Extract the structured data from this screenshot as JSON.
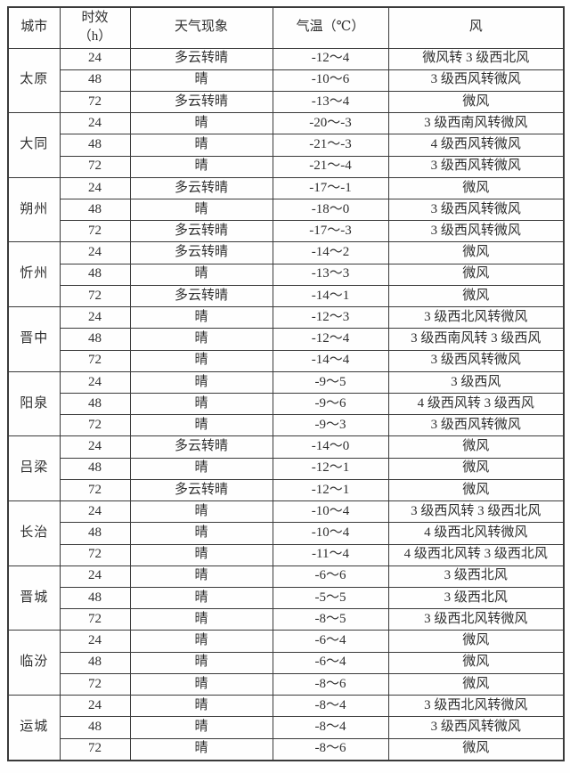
{
  "table": {
    "headers": [
      "城市",
      "时效\n（h）",
      "天气现象",
      "气温（℃）",
      "风"
    ],
    "groups": [
      {
        "city": "太原",
        "rows": [
          {
            "hours": "24",
            "weather": "多云转晴",
            "temp": "-12～4",
            "wind": "微风转 3 级西北风"
          },
          {
            "hours": "48",
            "weather": "晴",
            "temp": "-10～6",
            "wind": "3 级西风转微风"
          },
          {
            "hours": "72",
            "weather": "多云转晴",
            "temp": "-13～4",
            "wind": "微风"
          }
        ]
      },
      {
        "city": "大同",
        "rows": [
          {
            "hours": "24",
            "weather": "晴",
            "temp": "-20～-3",
            "wind": "3 级西南风转微风"
          },
          {
            "hours": "48",
            "weather": "晴",
            "temp": "-21～-3",
            "wind": "4 级西风转微风"
          },
          {
            "hours": "72",
            "weather": "晴",
            "temp": "-21～-4",
            "wind": "3 级西风转微风"
          }
        ]
      },
      {
        "city": "朔州",
        "rows": [
          {
            "hours": "24",
            "weather": "多云转晴",
            "temp": "-17～-1",
            "wind": "微风"
          },
          {
            "hours": "48",
            "weather": "晴",
            "temp": "-18～0",
            "wind": "3 级西风转微风"
          },
          {
            "hours": "72",
            "weather": "多云转晴",
            "temp": "-17～-3",
            "wind": "3 级西风转微风"
          }
        ]
      },
      {
        "city": "忻州",
        "rows": [
          {
            "hours": "24",
            "weather": "多云转晴",
            "temp": "-14～2",
            "wind": "微风"
          },
          {
            "hours": "48",
            "weather": "晴",
            "temp": "-13～3",
            "wind": "微风"
          },
          {
            "hours": "72",
            "weather": "多云转晴",
            "temp": "-14～1",
            "wind": "微风"
          }
        ]
      },
      {
        "city": "晋中",
        "rows": [
          {
            "hours": "24",
            "weather": "晴",
            "temp": "-12～3",
            "wind": "3 级西北风转微风"
          },
          {
            "hours": "48",
            "weather": "晴",
            "temp": "-12～4",
            "wind": "3 级西南风转 3 级西风"
          },
          {
            "hours": "72",
            "weather": "晴",
            "temp": "-14～4",
            "wind": "3 级西风转微风"
          }
        ]
      },
      {
        "city": "阳泉",
        "rows": [
          {
            "hours": "24",
            "weather": "晴",
            "temp": "-9～5",
            "wind": "3 级西风"
          },
          {
            "hours": "48",
            "weather": "晴",
            "temp": "-9～6",
            "wind": "4 级西风转 3 级西风"
          },
          {
            "hours": "72",
            "weather": "晴",
            "temp": "-9～3",
            "wind": "3 级西风转微风"
          }
        ]
      },
      {
        "city": "吕梁",
        "rows": [
          {
            "hours": "24",
            "weather": "多云转晴",
            "temp": "-14～0",
            "wind": "微风"
          },
          {
            "hours": "48",
            "weather": "晴",
            "temp": "-12～1",
            "wind": "微风"
          },
          {
            "hours": "72",
            "weather": "多云转晴",
            "temp": "-12～1",
            "wind": "微风"
          }
        ]
      },
      {
        "city": "长治",
        "rows": [
          {
            "hours": "24",
            "weather": "晴",
            "temp": "-10～4",
            "wind": "3 级西风转 3 级西北风"
          },
          {
            "hours": "48",
            "weather": "晴",
            "temp": "-10～4",
            "wind": "4 级西北风转微风"
          },
          {
            "hours": "72",
            "weather": "晴",
            "temp": "-11～4",
            "wind": "4 级西北风转 3 级西北风"
          }
        ]
      },
      {
        "city": "晋城",
        "rows": [
          {
            "hours": "24",
            "weather": "晴",
            "temp": "-6～6",
            "wind": "3 级西北风"
          },
          {
            "hours": "48",
            "weather": "晴",
            "temp": "-5～5",
            "wind": "3 级西北风"
          },
          {
            "hours": "72",
            "weather": "晴",
            "temp": "-8～5",
            "wind": "3 级西北风转微风"
          }
        ]
      },
      {
        "city": "临汾",
        "rows": [
          {
            "hours": "24",
            "weather": "晴",
            "temp": "-6～4",
            "wind": "微风"
          },
          {
            "hours": "48",
            "weather": "晴",
            "temp": "-6～4",
            "wind": "微风"
          },
          {
            "hours": "72",
            "weather": "晴",
            "temp": "-8～6",
            "wind": "微风"
          }
        ]
      },
      {
        "city": "运城",
        "rows": [
          {
            "hours": "24",
            "weather": "晴",
            "temp": "-8～4",
            "wind": "3 级西北风转微风"
          },
          {
            "hours": "48",
            "weather": "晴",
            "temp": "-8～4",
            "wind": "3 级西风转微风"
          },
          {
            "hours": "72",
            "weather": "晴",
            "temp": "-8～6",
            "wind": "微风"
          }
        ]
      }
    ],
    "colors": {
      "border": "#3a3a3a",
      "text": "#2f2f2f",
      "background": "#fefefe"
    }
  }
}
